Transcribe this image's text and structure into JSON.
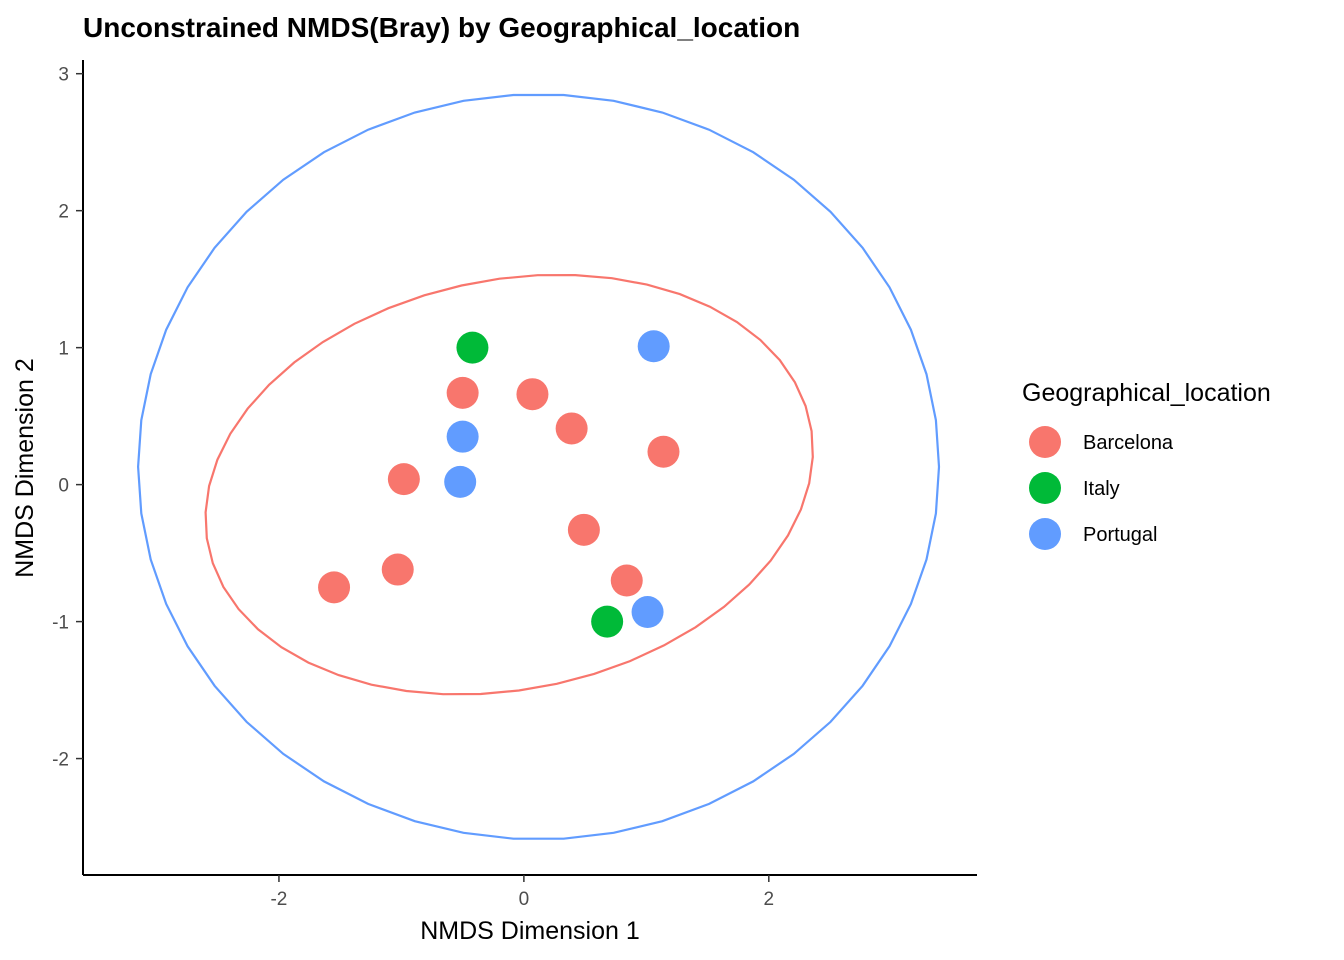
{
  "chart_data": {
    "type": "scatter",
    "title": "Unconstrained NMDS(Bray) by Geographical_location",
    "xlabel": "NMDS Dimension 1",
    "ylabel": "NMDS Dimension 2",
    "xlim": [
      -3.6,
      3.7
    ],
    "ylim": [
      -2.85,
      3.1
    ],
    "xticks": [
      -2,
      0,
      2
    ],
    "yticks": [
      -2,
      -1,
      0,
      1,
      2,
      3
    ],
    "grid": false,
    "legend": {
      "title": "Geographical_location",
      "position": "right"
    },
    "series": [
      {
        "name": "Barcelona",
        "color": "#F8766D",
        "points": [
          {
            "x": -0.5,
            "y": 0.67
          },
          {
            "x": 0.07,
            "y": 0.66
          },
          {
            "x": 0.39,
            "y": 0.41
          },
          {
            "x": 1.14,
            "y": 0.24
          },
          {
            "x": -0.98,
            "y": 0.04
          },
          {
            "x": 0.49,
            "y": -0.33
          },
          {
            "x": -1.03,
            "y": -0.62
          },
          {
            "x": -1.55,
            "y": -0.75
          },
          {
            "x": 0.84,
            "y": -0.7
          }
        ],
        "ellipse": {
          "cx": -0.12,
          "cy": 0.0,
          "rx": 2.5,
          "ry": 1.5,
          "angle_deg": 9
        }
      },
      {
        "name": "Italy",
        "color": "#00BA38",
        "points": [
          {
            "x": -0.42,
            "y": 1.0
          },
          {
            "x": 0.68,
            "y": -1.0
          }
        ]
      },
      {
        "name": "Portugal",
        "color": "#619CFF",
        "points": [
          {
            "x": 1.06,
            "y": 1.01
          },
          {
            "x": -0.5,
            "y": 0.35
          },
          {
            "x": -0.52,
            "y": 0.02
          },
          {
            "x": 1.01,
            "y": -0.93
          }
        ],
        "ellipse": {
          "cx": 0.12,
          "cy": 0.13,
          "rx": 3.27,
          "ry": 2.72,
          "angle_deg": 0
        }
      }
    ]
  }
}
